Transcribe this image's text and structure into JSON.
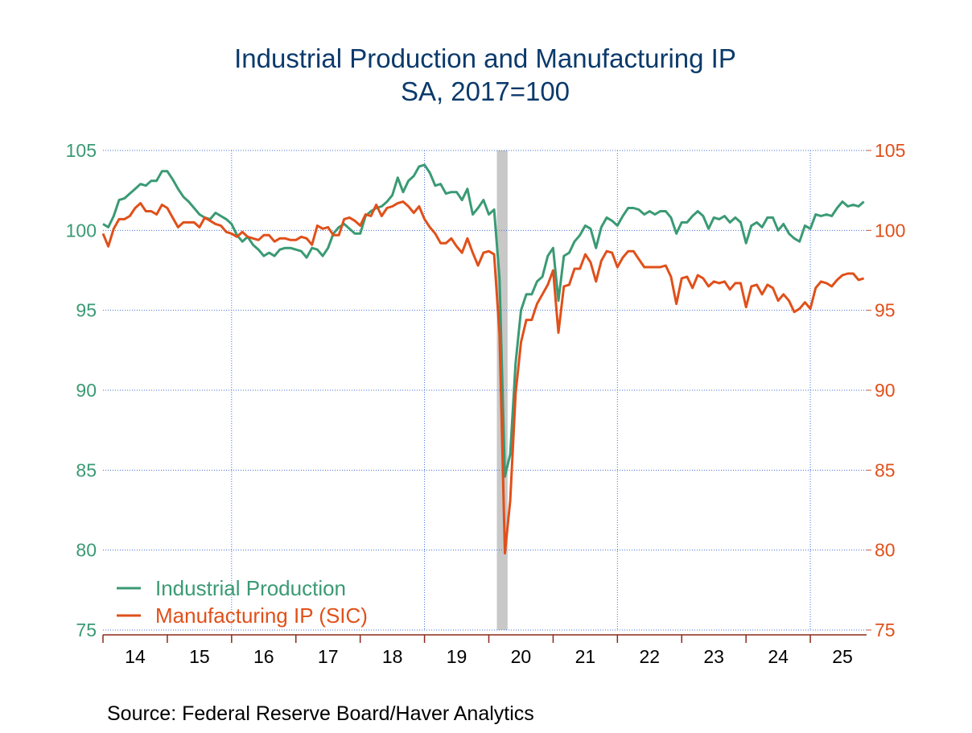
{
  "chart_data": {
    "type": "line",
    "title": "Industrial Production and Manufacturing IP",
    "subtitle": "SA, 2017=100",
    "source": "Source:  Federal Reserve Board/Haver Analytics",
    "x": [
      14,
      14.083,
      14.167,
      14.25,
      14.333,
      14.417,
      14.5,
      14.583,
      14.667,
      14.75,
      14.833,
      14.917,
      15,
      15.083,
      15.167,
      15.25,
      15.333,
      15.417,
      15.5,
      15.583,
      15.667,
      15.75,
      15.833,
      15.917,
      16,
      16.083,
      16.167,
      16.25,
      16.333,
      16.417,
      16.5,
      16.583,
      16.667,
      16.75,
      16.833,
      16.917,
      17,
      17.083,
      17.167,
      17.25,
      17.333,
      17.417,
      17.5,
      17.583,
      17.667,
      17.75,
      17.833,
      17.917,
      18,
      18.083,
      18.167,
      18.25,
      18.333,
      18.417,
      18.5,
      18.583,
      18.667,
      18.75,
      18.833,
      18.917,
      19,
      19.083,
      19.167,
      19.25,
      19.333,
      19.417,
      19.5,
      19.583,
      19.667,
      19.75,
      19.833,
      19.917,
      20,
      20.083,
      20.167,
      20.25,
      20.333,
      20.417,
      20.5,
      20.583,
      20.667,
      20.75,
      20.833,
      20.917,
      21,
      21.083,
      21.167,
      21.25,
      21.333,
      21.417,
      21.5,
      21.583,
      21.667,
      21.75,
      21.833,
      21.917,
      22,
      22.083,
      22.167,
      22.25,
      22.333,
      22.417,
      22.5,
      22.583,
      22.667,
      22.75,
      22.833,
      22.917,
      23,
      23.083,
      23.167,
      23.25,
      23.333,
      23.417,
      23.5,
      23.583,
      23.667,
      23.75,
      23.833,
      23.917,
      24,
      24.083,
      24.167,
      24.25,
      24.333,
      24.417,
      24.5,
      24.583,
      24.667,
      24.75,
      24.833,
      24.917,
      25,
      25.083,
      25.167,
      25.25,
      25.333,
      25.417,
      25.5,
      25.583,
      25.667,
      25.75,
      25.833
    ],
    "series": [
      {
        "name": "Industrial Production",
        "color": "#3a9a74",
        "values": [
          100.4,
          100.2,
          100.9,
          101.9,
          102.0,
          102.3,
          102.6,
          102.9,
          102.8,
          103.1,
          103.1,
          103.7,
          103.7,
          103.2,
          102.6,
          102.1,
          101.8,
          101.4,
          101.0,
          100.8,
          100.7,
          101.1,
          100.9,
          100.7,
          100.4,
          99.7,
          99.3,
          99.6,
          99.1,
          98.8,
          98.4,
          98.6,
          98.4,
          98.8,
          98.9,
          98.9,
          98.8,
          98.7,
          98.3,
          98.9,
          98.8,
          98.4,
          98.9,
          99.8,
          100.2,
          100.4,
          100.1,
          99.8,
          99.8,
          100.9,
          101.2,
          101.4,
          101.5,
          101.8,
          102.2,
          103.3,
          102.4,
          103.1,
          103.4,
          104.0,
          104.1,
          103.6,
          102.8,
          102.9,
          102.3,
          102.4,
          102.4,
          101.9,
          102.6,
          101.0,
          101.4,
          101.9,
          101.0,
          101.3,
          97.0,
          84.6,
          86.0,
          91.7,
          95.0,
          96.0,
          96.0,
          96.8,
          97.1,
          98.4,
          98.9,
          95.6,
          98.4,
          98.6,
          99.3,
          99.7,
          100.3,
          100.1,
          98.9,
          100.2,
          100.8,
          100.6,
          100.3,
          100.9,
          101.4,
          101.4,
          101.3,
          101.0,
          101.2,
          101.0,
          101.2,
          101.2,
          100.8,
          99.8,
          100.5,
          100.5,
          100.9,
          101.2,
          100.9,
          100.1,
          100.8,
          100.7,
          100.9,
          100.5,
          100.8,
          100.5,
          99.2,
          100.3,
          100.5,
          100.2,
          100.8,
          100.8,
          100.0,
          100.4,
          99.8,
          99.5,
          99.3,
          100.3,
          100.1,
          101.0,
          100.9,
          101.0,
          100.9,
          101.4,
          101.8,
          101.5,
          101.6,
          101.5,
          101.8
        ]
      },
      {
        "name": "Manufacturing IP (SIC)",
        "color": "#e0501a",
        "axis": "y2",
        "values": [
          99.8,
          99.0,
          100.1,
          100.7,
          100.7,
          100.9,
          101.4,
          101.7,
          101.2,
          101.2,
          101.0,
          101.6,
          101.4,
          100.8,
          100.2,
          100.5,
          100.5,
          100.5,
          100.2,
          100.8,
          100.6,
          100.4,
          100.3,
          99.9,
          99.8,
          99.6,
          99.9,
          99.6,
          99.5,
          99.4,
          99.7,
          99.7,
          99.3,
          99.5,
          99.5,
          99.4,
          99.4,
          99.6,
          99.5,
          99.1,
          100.3,
          100.1,
          100.2,
          99.7,
          99.7,
          100.7,
          100.8,
          100.6,
          100.3,
          101.0,
          100.9,
          101.6,
          100.9,
          101.4,
          101.5,
          101.7,
          101.8,
          101.5,
          101.1,
          101.5,
          100.7,
          100.2,
          99.8,
          99.2,
          99.2,
          99.5,
          99.0,
          98.6,
          99.5,
          98.6,
          97.8,
          98.6,
          98.7,
          98.5,
          93.5,
          79.8,
          83.1,
          89.8,
          93.0,
          94.4,
          94.4,
          95.4,
          96.0,
          96.6,
          97.5,
          93.6,
          96.5,
          96.6,
          97.6,
          97.6,
          98.5,
          98.0,
          96.8,
          98.1,
          98.7,
          98.6,
          97.7,
          98.3,
          98.7,
          98.7,
          98.2,
          97.7,
          97.7,
          97.7,
          97.7,
          97.8,
          97.1,
          95.4,
          97.0,
          97.1,
          96.4,
          97.2,
          97.0,
          96.5,
          96.8,
          96.7,
          96.8,
          96.3,
          96.7,
          96.7,
          95.2,
          96.5,
          96.6,
          96.0,
          96.6,
          96.4,
          95.6,
          96.0,
          95.6,
          94.9,
          95.1,
          95.5,
          95.1,
          96.4,
          96.8,
          96.7,
          96.5,
          96.9,
          97.2,
          97.3,
          97.3,
          96.9,
          97.0
        ]
      }
    ],
    "xlim": [
      14,
      25.875
    ],
    "xticks": [
      14,
      15,
      16,
      17,
      18,
      19,
      20,
      21,
      22,
      23,
      24,
      25
    ],
    "xtick_labels": [
      {
        "value": 14.5,
        "label": "14"
      },
      {
        "value": 15.5,
        "label": "15"
      },
      {
        "value": 16.5,
        "label": "16"
      },
      {
        "value": 17.5,
        "label": "17"
      },
      {
        "value": 18.5,
        "label": "18"
      },
      {
        "value": 19.5,
        "label": "19"
      },
      {
        "value": 20.5,
        "label": "20"
      },
      {
        "value": 21.5,
        "label": "21"
      },
      {
        "value": 22.5,
        "label": "22"
      },
      {
        "value": 23.5,
        "label": "23"
      },
      {
        "value": 24.5,
        "label": "24"
      },
      {
        "value": 25.5,
        "label": "25"
      }
    ],
    "xgrid": [
      16,
      19,
      22,
      25
    ],
    "ylim": [
      75,
      105
    ],
    "yticks": [
      75,
      80,
      85,
      90,
      95,
      100,
      105
    ],
    "y2lim": [
      75,
      105
    ],
    "y2ticks": [
      75,
      80,
      85,
      90,
      95,
      100,
      105
    ],
    "grid": true,
    "shading": [
      {
        "start": 20.125,
        "end": 20.292
      }
    ],
    "legend": "lower-left"
  }
}
